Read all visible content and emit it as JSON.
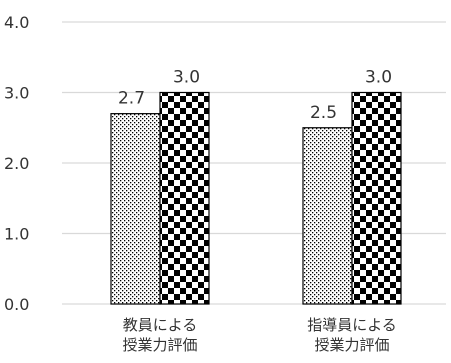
{
  "chart_data": {
    "type": "bar",
    "categories": [
      [
        "教員による",
        "授業力評価"
      ],
      [
        "指導員による",
        "授業力評価"
      ]
    ],
    "series": [
      {
        "values": [
          2.7,
          2.5
        ],
        "pattern": "dots"
      },
      {
        "values": [
          3.0,
          3.0
        ],
        "pattern": "checker"
      }
    ],
    "data_labels": [
      [
        "2.7",
        "2.5"
      ],
      [
        "3.0",
        "3.0"
      ]
    ],
    "yticks": [
      "0.0",
      "1.0",
      "2.0",
      "3.0",
      "4.0"
    ],
    "ylim": [
      0,
      4
    ],
    "grid": true,
    "legend": "none",
    "colors": {
      "grid": "#d9d9d9",
      "bar_fill": "#000000",
      "bar_bg": "#ffffff",
      "text": "#333333"
    }
  }
}
